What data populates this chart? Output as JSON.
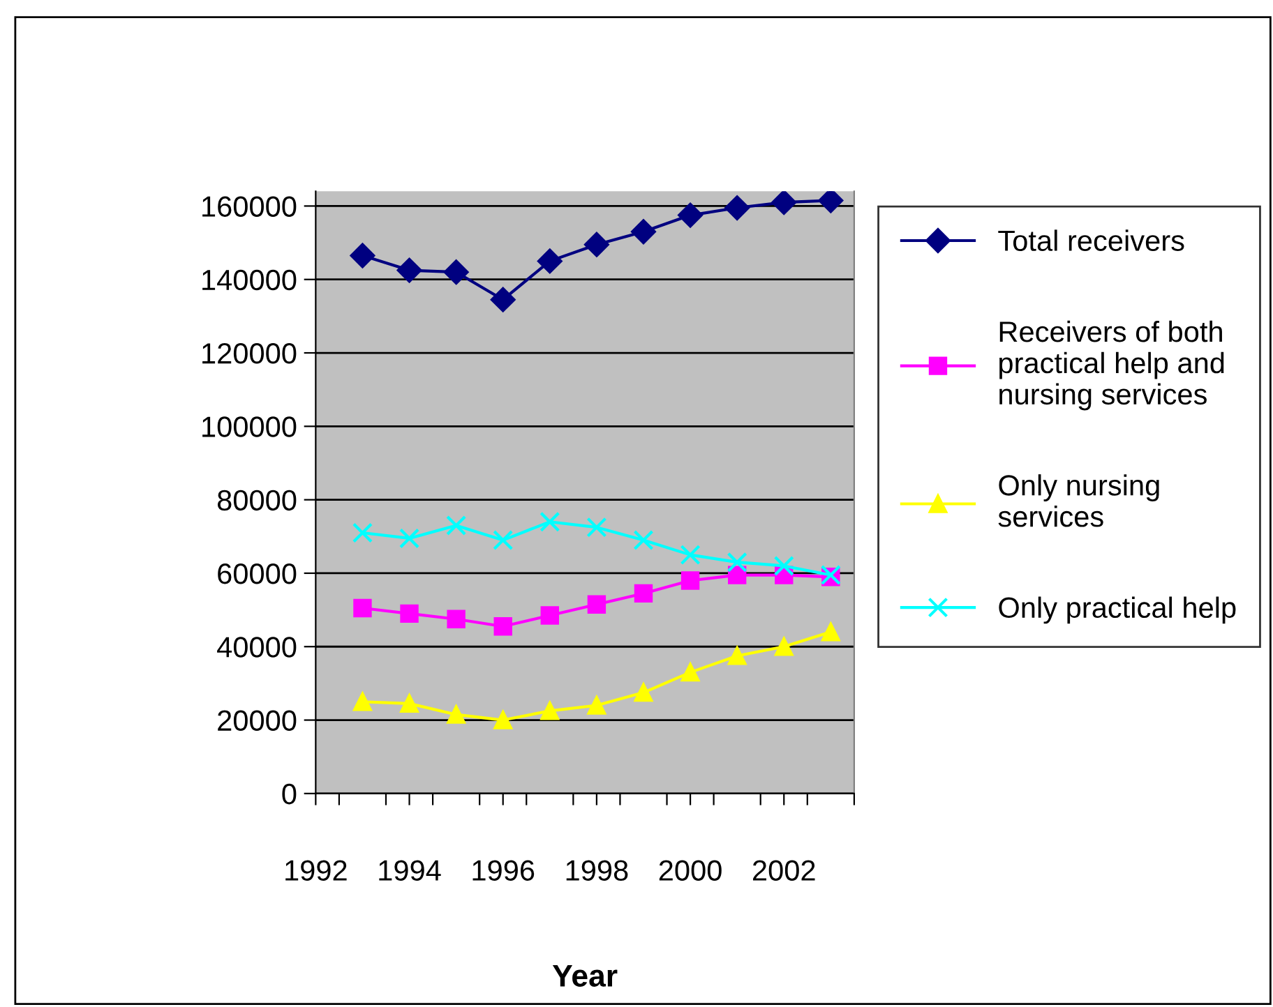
{
  "chart_data": {
    "type": "line",
    "xlabel": "Year",
    "x": [
      1993,
      1994,
      1995,
      1996,
      1997,
      1998,
      1999,
      2000,
      2001,
      2002,
      2003
    ],
    "series": [
      {
        "name": "Total receivers",
        "color": "#000080",
        "marker": "diamond",
        "values": [
          146500,
          142500,
          142000,
          134500,
          145000,
          149500,
          153000,
          157500,
          159500,
          161000,
          161500
        ]
      },
      {
        "name": "Receivers of both practical help and nursing services",
        "color": "#ff00ff",
        "marker": "square",
        "values": [
          50500,
          49000,
          47500,
          45500,
          48500,
          51500,
          54500,
          58000,
          59500,
          59500,
          59000
        ]
      },
      {
        "name": "Only nursing services",
        "color": "#ffff00",
        "marker": "triangle",
        "values": [
          25000,
          24500,
          21500,
          20000,
          22500,
          24000,
          27500,
          33000,
          37500,
          40000,
          44000
        ]
      },
      {
        "name": "Only practical help",
        "color": "#00ffff",
        "marker": "cross",
        "values": [
          71000,
          69500,
          73000,
          69000,
          74000,
          72500,
          69000,
          65000,
          63000,
          62000,
          59500
        ]
      }
    ],
    "xlim": [
      1992,
      2003.5
    ],
    "xticks": [
      1992,
      1994,
      1996,
      1998,
      2000,
      2002,
      {
        "value": 1992.5,
        "label": null
      },
      {
        "value": 1993.5,
        "label": null
      },
      {
        "value": 1994.5,
        "label": null
      },
      {
        "value": 1995.5,
        "label": null
      },
      {
        "value": 1996.5,
        "label": null
      },
      {
        "value": 1997.5,
        "label": null
      },
      {
        "value": 1998.5,
        "label": null
      },
      {
        "value": 1999.5,
        "label": null
      },
      {
        "value": 2000.5,
        "label": null
      },
      {
        "value": 2001.5,
        "label": null
      },
      {
        "value": 2002.5,
        "label": null
      },
      {
        "value": 2003.5,
        "label": null
      }
    ],
    "ylim": [
      0,
      164000
    ],
    "yticks": [
      0,
      20000,
      40000,
      60000,
      80000,
      100000,
      120000,
      140000,
      160000
    ],
    "grid": "y",
    "legend": "right"
  }
}
